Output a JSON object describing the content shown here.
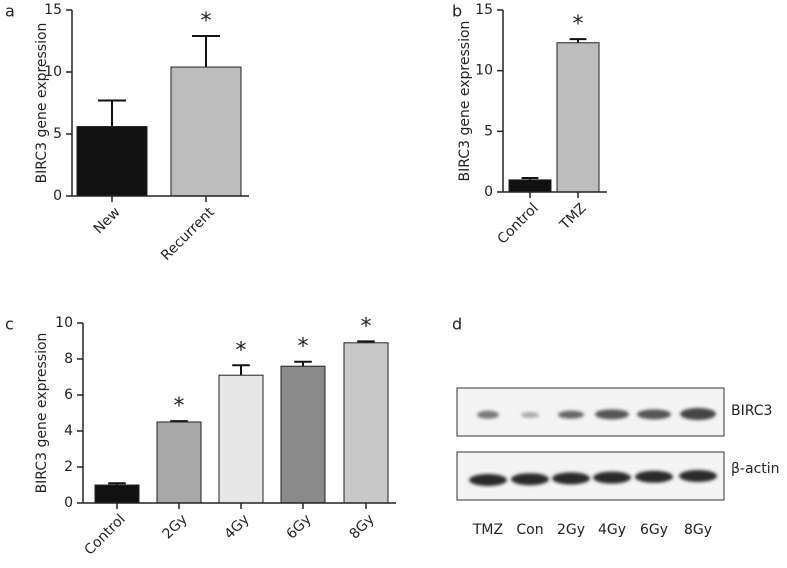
{
  "chart_data": [
    {
      "type": "bar",
      "label": "a",
      "ylabel": "BIRC3 gene expression",
      "categories": [
        "New",
        "Recurrent"
      ],
      "values": [
        5.6,
        10.4
      ],
      "errors": [
        2.1,
        2.5
      ],
      "colors": [
        "#111111",
        "#bdbdbd"
      ],
      "markers": [
        null,
        "*"
      ],
      "ylim": [
        0,
        15
      ],
      "yticks": [
        0,
        5,
        10,
        15
      ]
    },
    {
      "type": "bar",
      "label": "b",
      "ylabel": "BIRC3 gene expression",
      "categories": [
        "Control",
        "TMZ"
      ],
      "values": [
        1.0,
        12.3
      ],
      "errors": [
        0.15,
        0.3
      ],
      "colors": [
        "#111111",
        "#bdbdbd"
      ],
      "markers": [
        null,
        "*"
      ],
      "ylim": [
        0,
        15
      ],
      "yticks": [
        0,
        5,
        10,
        15
      ]
    },
    {
      "type": "bar",
      "label": "c",
      "ylabel": "BIRC3 gene expression",
      "categories": [
        "Control",
        "2Gy",
        "4Gy",
        "6Gy",
        "8Gy"
      ],
      "values": [
        1.0,
        4.5,
        7.1,
        7.6,
        8.9
      ],
      "errors": [
        0.1,
        0.05,
        0.55,
        0.25,
        0.08
      ],
      "colors": [
        "#111111",
        "#a8a8a8",
        "#e6e6e6",
        "#8a8a8a",
        "#c8c8c8"
      ],
      "markers": [
        null,
        "*",
        "*",
        "*",
        "*"
      ],
      "ylim": [
        0,
        10
      ],
      "yticks": [
        0,
        2,
        4,
        6,
        8,
        10
      ]
    }
  ],
  "blot": {
    "label": "d",
    "rows": [
      "BIRC3",
      "β-actin"
    ],
    "lanes": [
      "TMZ",
      "Con",
      "2Gy",
      "4Gy",
      "6Gy",
      "8Gy"
    ]
  }
}
